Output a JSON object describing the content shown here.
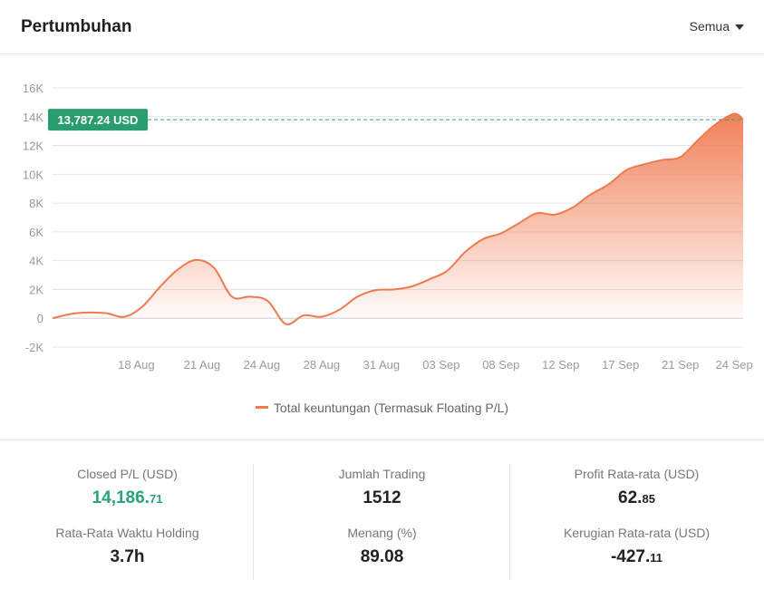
{
  "header": {
    "title": "Pertumbuhan",
    "filter_label": "Semua"
  },
  "chart_data": {
    "type": "area",
    "title": "",
    "xlabel": "",
    "ylabel": "",
    "ylim": [
      -2000,
      16000
    ],
    "yticks": [
      -2000,
      0,
      2000,
      4000,
      6000,
      8000,
      10000,
      12000,
      14000,
      16000
    ],
    "ytick_labels": [
      "-2K",
      "0",
      "2K",
      "4K",
      "6K",
      "8K",
      "10K",
      "12K",
      "14K",
      "16K"
    ],
    "xtick_labels": [
      "18 Aug",
      "21 Aug",
      "24 Aug",
      "28 Aug",
      "31 Aug",
      "03 Sep",
      "08 Sep",
      "12 Sep",
      "17 Sep",
      "21 Sep",
      "24 Sep"
    ],
    "xtick_index": [
      2.8,
      5.0,
      7.0,
      9.0,
      11.0,
      13.0,
      15.0,
      17.0,
      19.0,
      21.0,
      22.8
    ],
    "grid": true,
    "legend_position": "bottom",
    "current_value": 13787.24,
    "current_value_label": "13,787.24 USD",
    "series": [
      {
        "name": "Total keuntungan (Termasuk Floating P/L)",
        "color": "#f07a50",
        "x_index": [
          0,
          0.6,
          1.2,
          1.8,
          2.4,
          3.0,
          3.6,
          4.2,
          4.8,
          5.4,
          6.0,
          6.6,
          7.2,
          7.8,
          8.4,
          9.0,
          9.6,
          10.2,
          10.8,
          11.4,
          12.0,
          12.6,
          13.2,
          13.8,
          14.4,
          15.0,
          15.6,
          16.2,
          16.8,
          17.4,
          18.0,
          18.6,
          19.2,
          19.8,
          20.4,
          21.0,
          21.6,
          22.2,
          22.8,
          23.1
        ],
        "values": [
          0,
          300,
          400,
          350,
          100,
          800,
          2200,
          3400,
          4050,
          3500,
          1500,
          1500,
          1200,
          -400,
          200,
          100,
          600,
          1500,
          1950,
          2000,
          2200,
          2700,
          3300,
          4600,
          5500,
          5900,
          6600,
          7300,
          7200,
          7700,
          8600,
          9300,
          10300,
          10700,
          11000,
          11200,
          12400,
          13500,
          14200,
          13800
        ]
      }
    ]
  },
  "legend": {
    "label": "Total keuntungan (Termasuk Floating P/L)"
  },
  "stats": {
    "closed_pl": {
      "label": "Closed P/L (USD)",
      "int": "14,186.",
      "dec": "71"
    },
    "holding": {
      "label": "Rata-Rata Waktu Holding",
      "value": "3.7h"
    },
    "trades": {
      "label": "Jumlah Trading",
      "value": "1512"
    },
    "win": {
      "label": "Menang (%)",
      "value": "89.08"
    },
    "avg_profit": {
      "label": "Profit Rata-rata (USD)",
      "int": "62.",
      "dec": "85"
    },
    "avg_loss": {
      "label": "Kerugian Rata-rata (USD)",
      "int": "-427.",
      "dec": "11"
    }
  }
}
